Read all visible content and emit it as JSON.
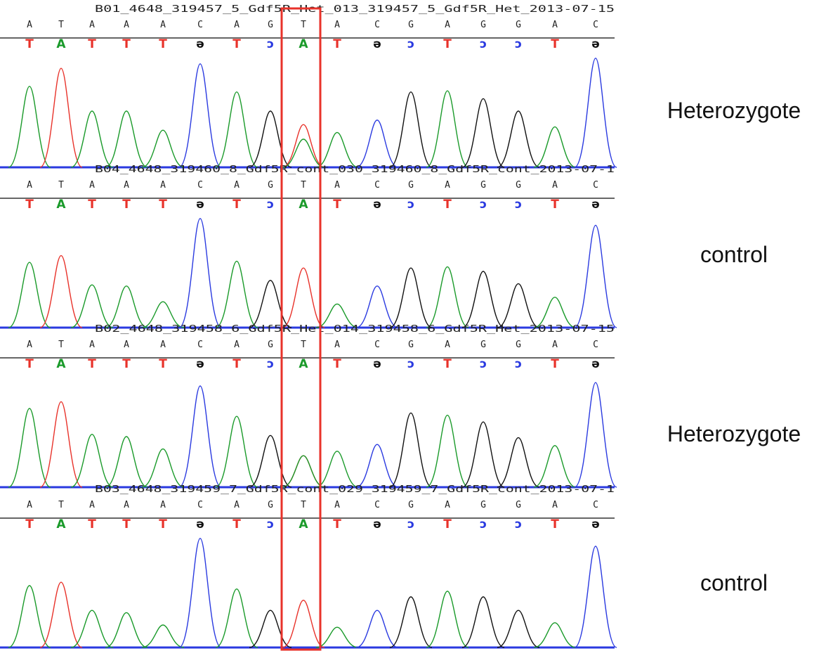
{
  "panels": [
    {
      "title": "B01_4648_319457_5_Gdf5R_Het_013_319457_5_Gdf5R_Het_2013-07-15",
      "top_bases": [
        "A",
        "T",
        "A",
        "A",
        "A",
        "C",
        "A",
        "G",
        "T",
        "A",
        "C",
        "G",
        "A",
        "G",
        "G",
        "A",
        "C"
      ],
      "complement_bases": [
        "T",
        "A",
        "T",
        "T",
        "T",
        "ə",
        "T",
        "ɔ",
        "A",
        "T",
        "ə",
        "ɔ",
        "T",
        "ɔ",
        "ɔ",
        "T",
        "ə"
      ],
      "label": "Heterozygote"
    },
    {
      "title": "B04_4648_319460_8_Gdf5R_cont_030_319460_8_Gdf5R_cont_2013-07-1",
      "top_bases": [
        "A",
        "T",
        "A",
        "A",
        "A",
        "C",
        "A",
        "G",
        "T",
        "A",
        "C",
        "G",
        "A",
        "G",
        "G",
        "A",
        "C"
      ],
      "complement_bases": [
        "T",
        "A",
        "T",
        "T",
        "T",
        "ə",
        "T",
        "ɔ",
        "A",
        "T",
        "ə",
        "ɔ",
        "T",
        "ɔ",
        "ɔ",
        "T",
        "ə"
      ],
      "label": "control"
    },
    {
      "title": "B02_4648_319458_6_Gdf5R_Het_014_319458_6_Gdf5R_Het_2013-07-15",
      "top_bases": [
        "A",
        "T",
        "A",
        "A",
        "A",
        "C",
        "A",
        "G",
        "T",
        "A",
        "C",
        "G",
        "A",
        "G",
        "G",
        "A",
        "C"
      ],
      "complement_bases": [
        "T",
        "A",
        "T",
        "T",
        "T",
        "ə",
        "T",
        "ɔ",
        "A",
        "T",
        "ə",
        "ɔ",
        "T",
        "ɔ",
        "ɔ",
        "T",
        "ə"
      ],
      "label": "Heterozygote"
    },
    {
      "title": "B03_4648_319459_7_Gdf5R_cont_029_319459_7_Gdf5R_cont_2013-07-1",
      "top_bases": [
        "A",
        "T",
        "A",
        "A",
        "A",
        "C",
        "A",
        "G",
        "T",
        "A",
        "C",
        "G",
        "A",
        "G",
        "G",
        "A",
        "C"
      ],
      "complement_bases": [
        "T",
        "A",
        "T",
        "T",
        "T",
        "ə",
        "T",
        "ɔ",
        "A",
        "T",
        "ə",
        "ɔ",
        "T",
        "ɔ",
        "ɔ",
        "T",
        "ə"
      ],
      "label": "control"
    }
  ]
}
